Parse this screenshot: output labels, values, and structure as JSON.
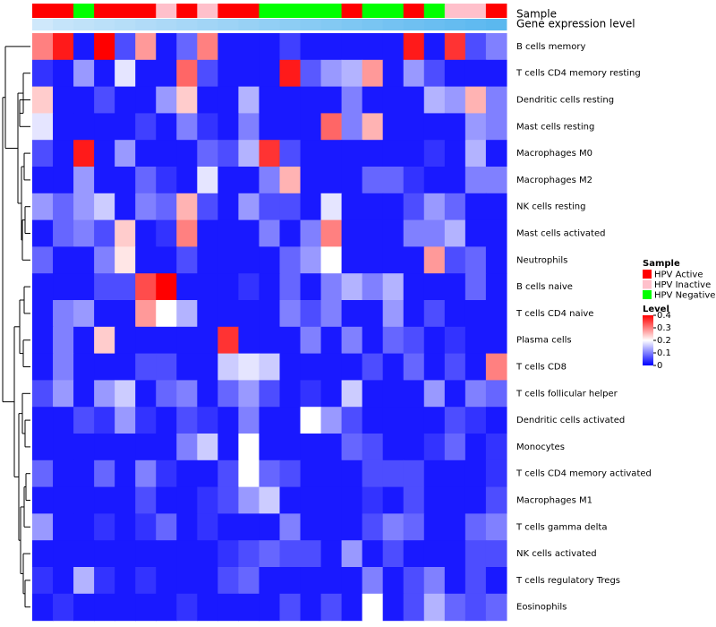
{
  "chart_data": {
    "type": "heatmap",
    "title": "",
    "annotation_tracks": [
      "Sample",
      "Gene expression level"
    ],
    "sample_annotation": [
      "HPV Active",
      "HPV Active",
      "HPV Negative",
      "HPV Active",
      "HPV Active",
      "HPV Active",
      "HPV Inactive",
      "HPV Active",
      "HPV Inactive",
      "HPV Active",
      "HPV Active",
      "HPV Negative",
      "HPV Negative",
      "HPV Negative",
      "HPV Negative",
      "HPV Active",
      "HPV Negative",
      "HPV Negative",
      "HPV Active",
      "HPV Negative",
      "HPV Inactive",
      "HPV Inactive",
      "HPV Active"
    ],
    "expression_annotation": [
      0.32,
      0.3,
      0.29,
      0.28,
      0.27,
      0.26,
      0.25,
      0.24,
      0.23,
      0.22,
      0.21,
      0.2,
      0.19,
      0.18,
      0.17,
      0.16,
      0.15,
      0.14,
      0.13,
      0.12,
      0.11,
      0.1,
      0.09
    ],
    "rows": [
      "B cells memory",
      "T cells CD4 memory resting",
      "Dendritic cells resting",
      "Mast cells resting",
      "Macrophages M0",
      "Macrophages M2",
      "NK cells resting",
      "Mast cells activated",
      "Neutrophils",
      "B cells naive",
      "T cells CD4 naive",
      "Plasma cells",
      "T cells CD8",
      "T cells follicular helper",
      "Dendritic cells activated",
      "Monocytes",
      "T cells CD4 memory activated",
      "Macrophages M1",
      "T cells gamma delta",
      "NK cells activated",
      "T cells regulatory  Tregs",
      "Eosinophils"
    ],
    "values": [
      [
        0.3,
        0.38,
        0.02,
        0.4,
        0.06,
        0.28,
        0.02,
        0.08,
        0.3,
        0.02,
        0.02,
        0.02,
        0.05,
        0.02,
        0.02,
        0.02,
        0.02,
        0.02,
        0.38,
        0.02,
        0.36,
        0.06,
        0.1
      ],
      [
        0.04,
        0.02,
        0.12,
        0.02,
        0.18,
        0.02,
        0.02,
        0.32,
        0.06,
        0.02,
        0.02,
        0.02,
        0.38,
        0.07,
        0.12,
        0.14,
        0.28,
        0.02,
        0.12,
        0.06,
        0.02,
        0.02,
        0.02
      ],
      [
        0.24,
        0.02,
        0.02,
        0.06,
        0.02,
        0.02,
        0.12,
        0.24,
        0.02,
        0.02,
        0.14,
        0.02,
        0.02,
        0.02,
        0.02,
        0.1,
        0.02,
        0.02,
        0.02,
        0.14,
        0.12,
        0.26,
        0.1
      ],
      [
        0.18,
        0.02,
        0.02,
        0.02,
        0.02,
        0.05,
        0.02,
        0.1,
        0.04,
        0.02,
        0.1,
        0.02,
        0.02,
        0.02,
        0.32,
        0.1,
        0.26,
        0.02,
        0.02,
        0.02,
        0.02,
        0.12,
        0.1
      ],
      [
        0.06,
        0.02,
        0.38,
        0.02,
        0.12,
        0.02,
        0.02,
        0.02,
        0.08,
        0.06,
        0.14,
        0.36,
        0.06,
        0.02,
        0.02,
        0.02,
        0.02,
        0.02,
        0.02,
        0.04,
        0.02,
        0.14,
        0.02
      ],
      [
        0.02,
        0.02,
        0.12,
        0.02,
        0.02,
        0.08,
        0.04,
        0.02,
        0.18,
        0.02,
        0.02,
        0.1,
        0.26,
        0.02,
        0.02,
        0.02,
        0.08,
        0.08,
        0.04,
        0.02,
        0.02,
        0.1,
        0.1
      ],
      [
        0.12,
        0.08,
        0.12,
        0.16,
        0.02,
        0.1,
        0.08,
        0.26,
        0.06,
        0.02,
        0.12,
        0.06,
        0.06,
        0.02,
        0.18,
        0.02,
        0.02,
        0.02,
        0.06,
        0.12,
        0.08,
        0.02,
        0.02
      ],
      [
        0.02,
        0.08,
        0.1,
        0.06,
        0.24,
        0.02,
        0.04,
        0.3,
        0.02,
        0.02,
        0.02,
        0.1,
        0.02,
        0.1,
        0.3,
        0.02,
        0.02,
        0.02,
        0.1,
        0.1,
        0.14,
        0.02,
        0.02
      ],
      [
        0.08,
        0.02,
        0.02,
        0.1,
        0.22,
        0.02,
        0.02,
        0.06,
        0.02,
        0.02,
        0.02,
        0.02,
        0.08,
        0.12,
        0.2,
        0.02,
        0.02,
        0.02,
        0.02,
        0.28,
        0.06,
        0.08,
        0.02
      ],
      [
        0.02,
        0.02,
        0.02,
        0.06,
        0.06,
        0.34,
        0.4,
        0.02,
        0.02,
        0.02,
        0.04,
        0.02,
        0.08,
        0.02,
        0.1,
        0.14,
        0.1,
        0.14,
        0.02,
        0.02,
        0.02,
        0.08,
        0.02
      ],
      [
        0.02,
        0.1,
        0.12,
        0.02,
        0.02,
        0.28,
        0.2,
        0.14,
        0.02,
        0.02,
        0.02,
        0.02,
        0.1,
        0.06,
        0.1,
        0.02,
        0.02,
        0.12,
        0.02,
        0.06,
        0.02,
        0.02,
        0.02
      ],
      [
        0.02,
        0.1,
        0.02,
        0.24,
        0.02,
        0.02,
        0.02,
        0.02,
        0.02,
        0.36,
        0.02,
        0.02,
        0.02,
        0.1,
        0.02,
        0.1,
        0.02,
        0.08,
        0.06,
        0.02,
        0.04,
        0.02,
        0.02
      ],
      [
        0.02,
        0.1,
        0.02,
        0.02,
        0.02,
        0.06,
        0.06,
        0.02,
        0.02,
        0.16,
        0.18,
        0.16,
        0.02,
        0.02,
        0.02,
        0.02,
        0.06,
        0.02,
        0.08,
        0.02,
        0.06,
        0.02,
        0.3
      ],
      [
        0.06,
        0.12,
        0.02,
        0.12,
        0.16,
        0.02,
        0.08,
        0.1,
        0.02,
        0.08,
        0.12,
        0.06,
        0.02,
        0.04,
        0.02,
        0.16,
        0.02,
        0.02,
        0.02,
        0.12,
        0.02,
        0.1,
        0.08
      ],
      [
        0.02,
        0.02,
        0.06,
        0.04,
        0.12,
        0.04,
        0.02,
        0.06,
        0.04,
        0.02,
        0.1,
        0.02,
        0.02,
        0.2,
        0.12,
        0.06,
        0.02,
        0.02,
        0.02,
        0.02,
        0.06,
        0.04,
        0.02
      ],
      [
        0.02,
        0.02,
        0.02,
        0.02,
        0.02,
        0.02,
        0.02,
        0.1,
        0.16,
        0.02,
        0.2,
        0.02,
        0.02,
        0.02,
        0.02,
        0.08,
        0.06,
        0.02,
        0.02,
        0.04,
        0.08,
        0.02,
        0.04
      ],
      [
        0.08,
        0.02,
        0.02,
        0.08,
        0.02,
        0.1,
        0.04,
        0.02,
        0.02,
        0.06,
        0.2,
        0.08,
        0.06,
        0.02,
        0.02,
        0.02,
        0.06,
        0.06,
        0.06,
        0.02,
        0.02,
        0.02,
        0.04
      ],
      [
        0.02,
        0.02,
        0.02,
        0.02,
        0.02,
        0.06,
        0.02,
        0.02,
        0.04,
        0.06,
        0.12,
        0.16,
        0.02,
        0.02,
        0.02,
        0.02,
        0.04,
        0.02,
        0.06,
        0.02,
        0.02,
        0.02,
        0.06
      ],
      [
        0.12,
        0.02,
        0.02,
        0.04,
        0.02,
        0.04,
        0.08,
        0.02,
        0.04,
        0.02,
        0.02,
        0.02,
        0.1,
        0.02,
        0.02,
        0.02,
        0.06,
        0.1,
        0.08,
        0.02,
        0.02,
        0.08,
        0.1
      ],
      [
        0.02,
        0.02,
        0.02,
        0.02,
        0.02,
        0.02,
        0.02,
        0.02,
        0.02,
        0.04,
        0.06,
        0.08,
        0.06,
        0.06,
        0.02,
        0.12,
        0.02,
        0.06,
        0.02,
        0.02,
        0.02,
        0.06,
        0.06
      ],
      [
        0.04,
        0.02,
        0.14,
        0.04,
        0.02,
        0.04,
        0.02,
        0.02,
        0.02,
        0.06,
        0.08,
        0.02,
        0.02,
        0.02,
        0.02,
        0.02,
        0.1,
        0.02,
        0.06,
        0.1,
        0.02,
        0.06,
        0.02
      ],
      [
        0.02,
        0.04,
        0.02,
        0.02,
        0.02,
        0.02,
        0.02,
        0.04,
        0.02,
        0.02,
        0.02,
        0.02,
        0.06,
        0.02,
        0.06,
        0.02,
        0.2,
        0.02,
        0.06,
        0.14,
        0.08,
        0.06,
        0.08
      ]
    ],
    "color_scale": {
      "low": "#0000ff",
      "mid": "#ffffff",
      "high": "#ff0000",
      "min": 0,
      "mid_value": 0.2,
      "max": 0.4
    },
    "legend": {
      "sample_title": "Sample",
      "sample_entries": [
        {
          "label": "HPV Active",
          "color": "#ff0000"
        },
        {
          "label": "HPV Inactive",
          "color": "#ffc0cb"
        },
        {
          "label": "HPV Negative",
          "color": "#00ff00"
        }
      ],
      "level_title": "Level",
      "level_ticks": [
        0.4,
        0.3,
        0.2,
        0.1,
        0
      ],
      "placement": "right"
    },
    "expression_colors": {
      "low": "#cfe8fb",
      "high": "#5bb8ef"
    },
    "dendrogram": "rows"
  }
}
